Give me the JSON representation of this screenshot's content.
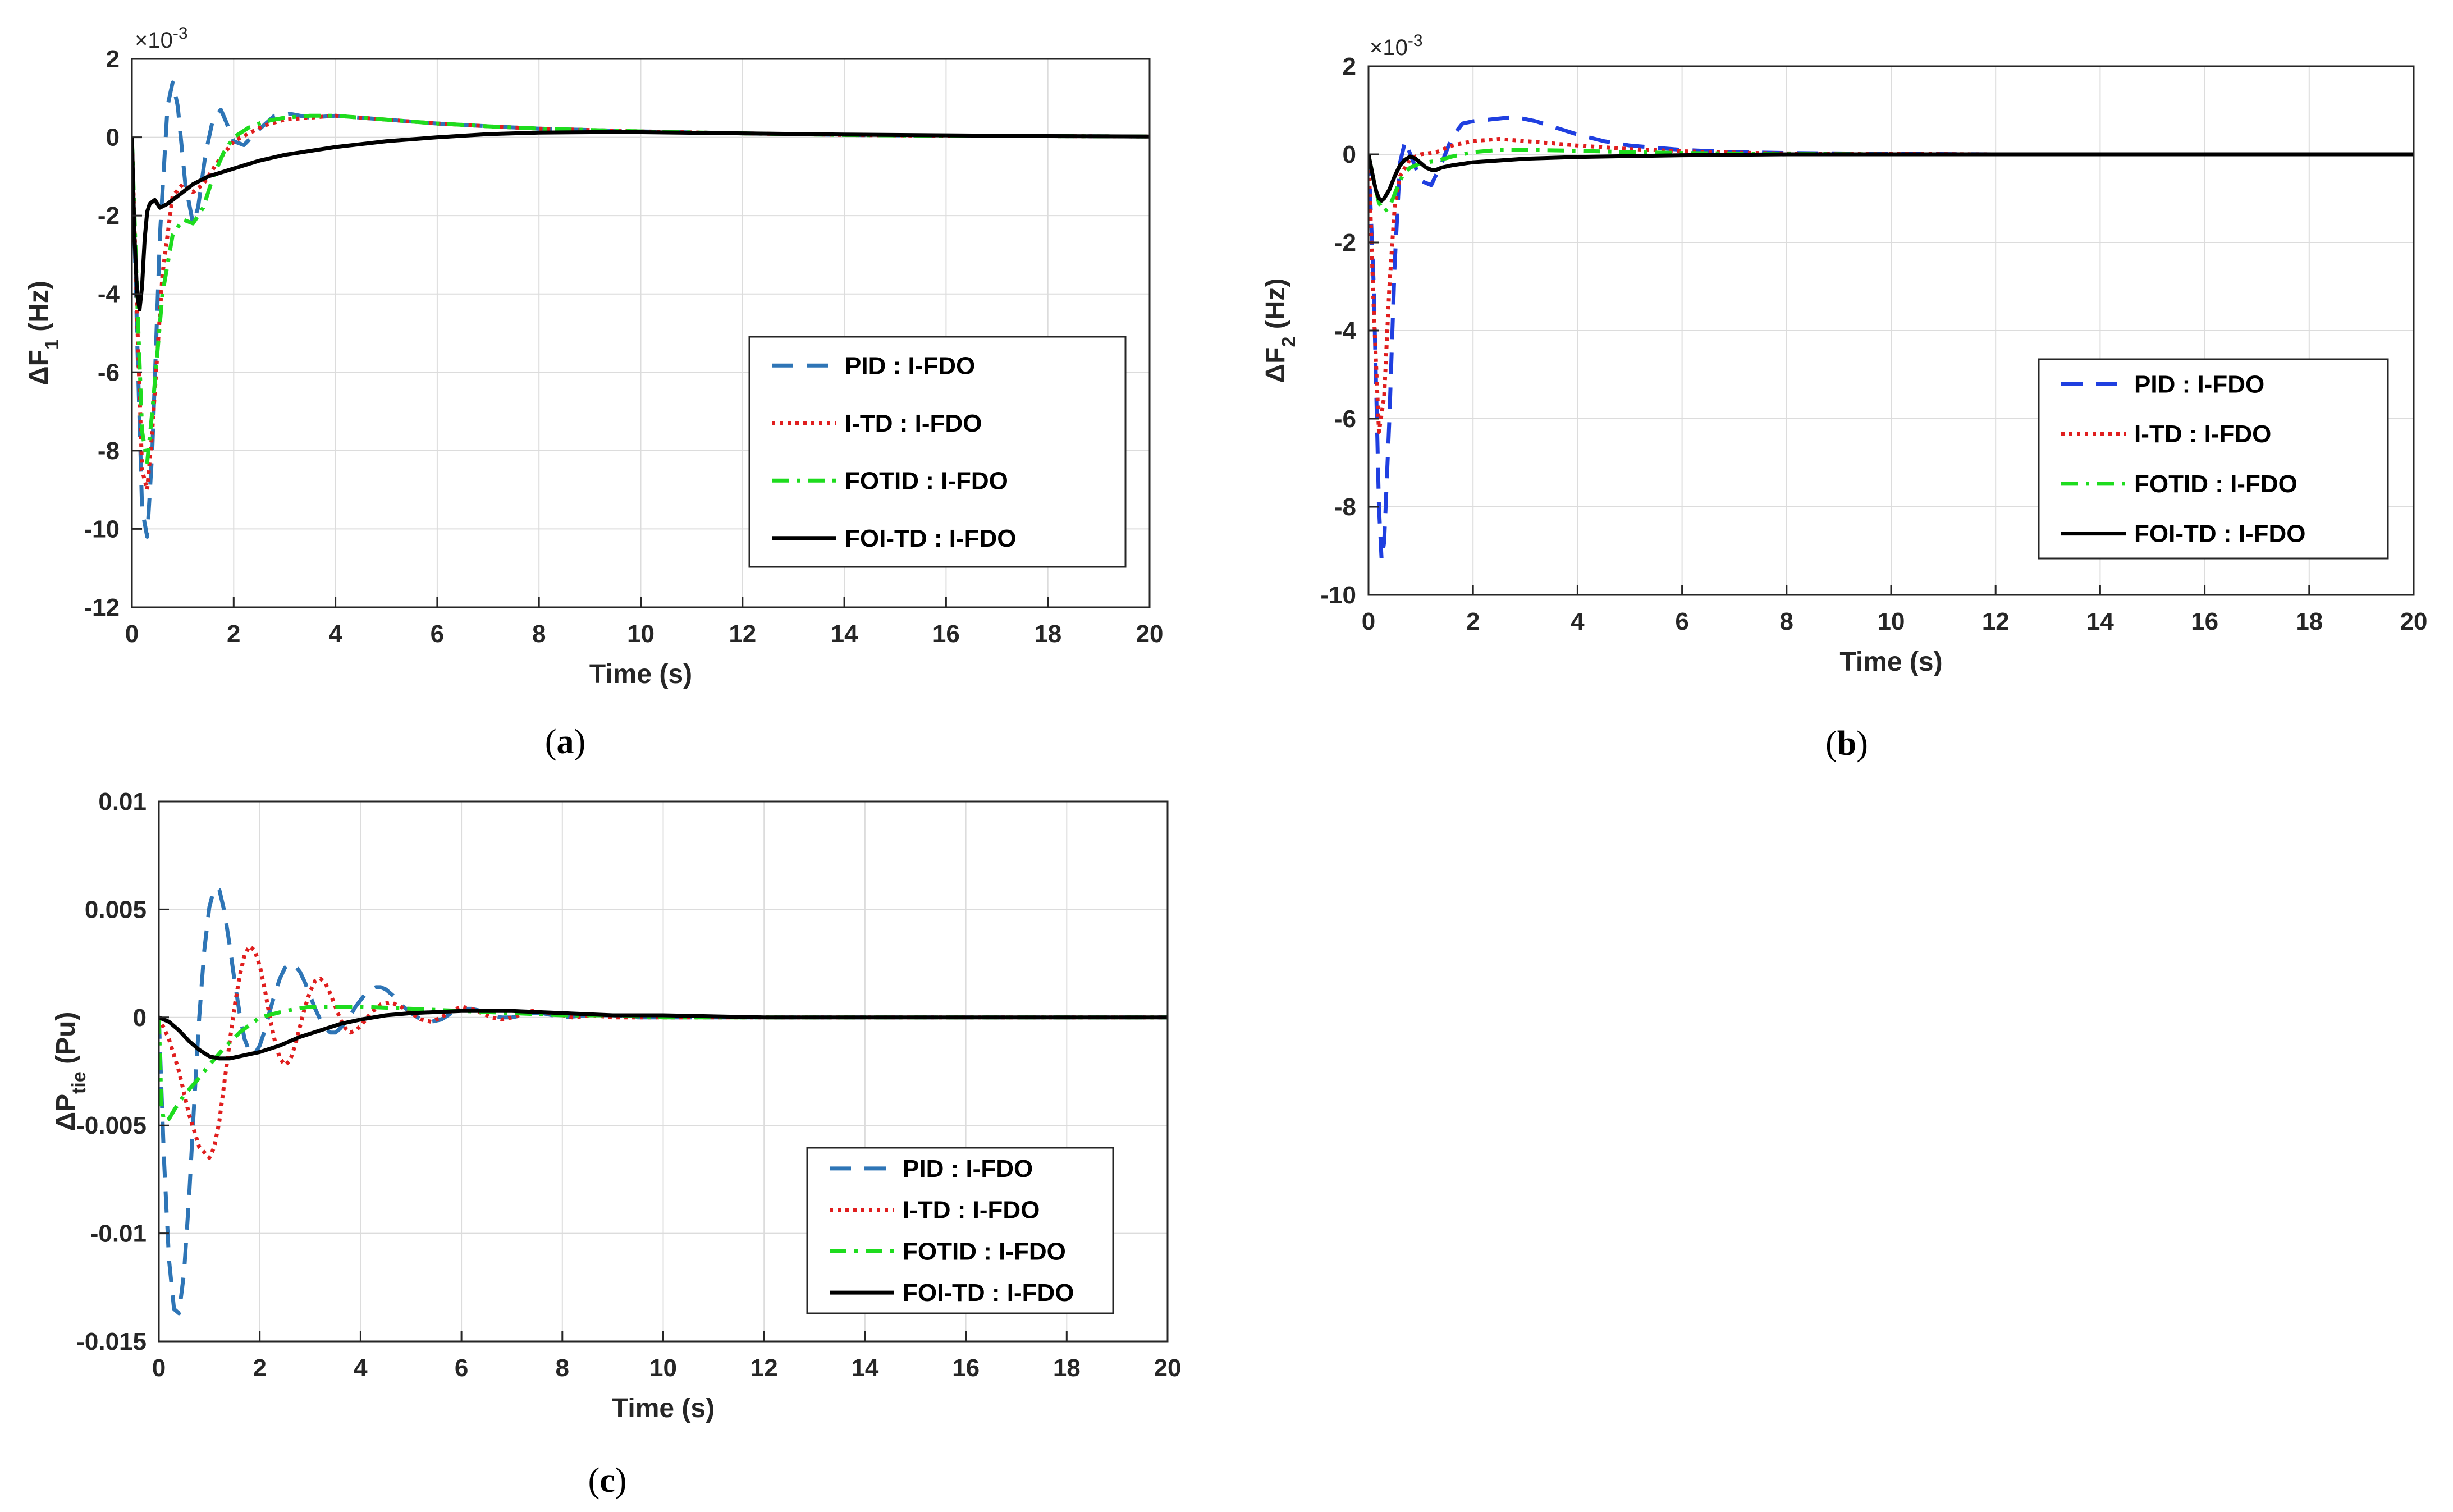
{
  "chart_data": [
    {
      "id": "a",
      "type": "line",
      "caption_letter": "a",
      "caption_open": "(",
      "caption_close": ")",
      "exponent_label": "×10",
      "exponent_power": "-3",
      "ylabel_main": "ΔF",
      "ylabel_sub": "1",
      "ylabel_unit": " (Hz)",
      "xlabel": "Time (s)",
      "xlim": [
        0,
        20
      ],
      "ylim": [
        -12,
        2
      ],
      "xticks": [
        "0",
        "2",
        "4",
        "6",
        "8",
        "10",
        "12",
        "14",
        "16",
        "18",
        "20"
      ],
      "yticks": [
        "2",
        "0",
        "-2",
        "-4",
        "-6",
        "-8",
        "-10",
        "-12"
      ],
      "grid": true,
      "legend_position": "lower-right",
      "series": [
        {
          "name": "PID : I-FDO",
          "color": "#2E75B6",
          "dash": "dashed",
          "x": [
            0,
            0.1,
            0.2,
            0.3,
            0.4,
            0.55,
            0.7,
            0.8,
            0.9,
            1.05,
            1.2,
            1.3,
            1.45,
            1.6,
            1.75,
            1.85,
            2.0,
            2.2,
            2.5,
            2.8,
            3.1,
            3.5,
            4,
            5,
            6,
            7,
            8,
            10,
            12,
            14,
            16,
            18,
            20
          ],
          "y": [
            0,
            -5.0,
            -9.5,
            -10.2,
            -8.0,
            -2.5,
            0.8,
            1.4,
            0.8,
            -1.2,
            -2.2,
            -1.8,
            -0.4,
            0.5,
            0.7,
            0.4,
            -0.1,
            -0.2,
            0.2,
            0.55,
            0.6,
            0.5,
            0.55,
            0.45,
            0.35,
            0.28,
            0.22,
            0.15,
            0.1,
            0.06,
            0.04,
            0.03,
            0.02
          ]
        },
        {
          "name": "I-TD : I-FDO",
          "color": "#E01E1E",
          "dash": "dotted",
          "x": [
            0,
            0.1,
            0.2,
            0.3,
            0.4,
            0.6,
            0.8,
            1.0,
            1.2,
            1.4,
            1.7,
            2.0,
            2.3,
            2.6,
            3.0,
            3.5,
            4,
            5,
            6,
            7,
            8,
            10,
            12,
            14,
            16,
            18,
            20
          ],
          "y": [
            0,
            -4.5,
            -8.5,
            -9.0,
            -7.5,
            -3.5,
            -1.5,
            -1.2,
            -1.4,
            -1.2,
            -0.6,
            -0.1,
            0.1,
            0.3,
            0.45,
            0.5,
            0.55,
            0.45,
            0.35,
            0.28,
            0.22,
            0.15,
            0.1,
            0.06,
            0.04,
            0.03,
            0.02
          ]
        },
        {
          "name": "FOTID : I-FDO",
          "color": "#1EDC1E",
          "dash": "dashdot",
          "x": [
            0,
            0.1,
            0.2,
            0.3,
            0.4,
            0.6,
            0.8,
            1.0,
            1.2,
            1.4,
            1.6,
            1.8,
            2.0,
            2.3,
            2.6,
            3.0,
            3.5,
            4,
            5,
            6,
            7,
            8,
            10,
            12,
            14,
            16,
            18,
            20
          ],
          "y": [
            0,
            -4.0,
            -7.5,
            -8.3,
            -7.0,
            -4.0,
            -2.5,
            -2.1,
            -2.2,
            -1.8,
            -1.0,
            -0.4,
            0.0,
            0.25,
            0.4,
            0.5,
            0.55,
            0.55,
            0.45,
            0.35,
            0.28,
            0.22,
            0.15,
            0.1,
            0.06,
            0.04,
            0.03,
            0.02
          ]
        },
        {
          "name": "FOI-TD : I-FDO",
          "color": "#000000",
          "dash": "solid",
          "x": [
            0,
            0.05,
            0.1,
            0.15,
            0.2,
            0.25,
            0.3,
            0.35,
            0.45,
            0.55,
            0.7,
            0.9,
            1.2,
            1.5,
            2,
            2.5,
            3,
            4,
            5,
            6,
            7,
            8,
            9,
            10,
            12,
            14,
            16,
            18,
            20
          ],
          "y": [
            0,
            -2.5,
            -4.0,
            -4.4,
            -3.8,
            -2.6,
            -1.9,
            -1.7,
            -1.6,
            -1.8,
            -1.7,
            -1.5,
            -1.2,
            -1.0,
            -0.8,
            -0.6,
            -0.45,
            -0.25,
            -0.1,
            0.0,
            0.08,
            0.12,
            0.13,
            0.13,
            0.1,
            0.07,
            0.05,
            0.03,
            0.02
          ]
        }
      ]
    },
    {
      "id": "b",
      "type": "line",
      "caption_letter": "b",
      "caption_open": "(",
      "caption_close": ")",
      "exponent_label": "×10",
      "exponent_power": "-3",
      "ylabel_main": "ΔF",
      "ylabel_sub": "2",
      "ylabel_unit": " (Hz)",
      "xlabel": "Time (s)",
      "xlim": [
        0,
        20
      ],
      "ylim": [
        -10,
        2
      ],
      "xticks": [
        "0",
        "2",
        "4",
        "6",
        "8",
        "10",
        "12",
        "14",
        "16",
        "18",
        "20"
      ],
      "yticks": [
        "2",
        "0",
        "-2",
        "-4",
        "-6",
        "-8",
        "-10"
      ],
      "grid": true,
      "legend_position": "lower-right",
      "series": [
        {
          "name": "PID : I-FDO",
          "color": "#1F3FE0",
          "dash": "dashed",
          "x": [
            0,
            0.1,
            0.2,
            0.25,
            0.3,
            0.4,
            0.5,
            0.6,
            0.7,
            0.8,
            1.0,
            1.2,
            1.4,
            1.6,
            1.8,
            2.0,
            2.4,
            2.8,
            3.2,
            3.6,
            4,
            4.5,
            5,
            6,
            7,
            8,
            10,
            12,
            14,
            16,
            18,
            20
          ],
          "y": [
            0,
            -3.0,
            -8.0,
            -9.2,
            -8.8,
            -6.0,
            -2.5,
            -0.2,
            0.3,
            0.0,
            -0.6,
            -0.7,
            -0.2,
            0.4,
            0.7,
            0.75,
            0.8,
            0.85,
            0.75,
            0.6,
            0.45,
            0.3,
            0.2,
            0.1,
            0.05,
            0.03,
            0.01,
            0,
            0,
            0,
            0,
            0
          ]
        },
        {
          "name": "I-TD : I-FDO",
          "color": "#E01E1E",
          "dash": "dotted",
          "x": [
            0,
            0.1,
            0.2,
            0.3,
            0.4,
            0.5,
            0.6,
            0.8,
            1.0,
            1.3,
            1.6,
            2.0,
            2.5,
            3,
            4,
            5,
            6,
            7,
            8,
            10,
            12,
            14,
            16,
            18,
            20
          ],
          "y": [
            0,
            -3.5,
            -6.3,
            -5.5,
            -3.0,
            -1.2,
            -0.5,
            -0.1,
            0.0,
            0.05,
            0.2,
            0.3,
            0.35,
            0.3,
            0.2,
            0.12,
            0.07,
            0.04,
            0.02,
            0.01,
            0,
            0,
            0,
            0,
            0
          ]
        },
        {
          "name": "FOTID : I-FDO",
          "color": "#1EDC1E",
          "dash": "dashdot",
          "x": [
            0,
            0.1,
            0.2,
            0.3,
            0.4,
            0.5,
            0.6,
            0.7,
            0.8,
            1.0,
            1.3,
            1.6,
            2.0,
            2.5,
            3,
            4,
            5,
            6,
            8,
            10,
            12,
            14,
            16,
            18,
            20
          ],
          "y": [
            0,
            -0.6,
            -1.1,
            -1.3,
            -1.2,
            -0.9,
            -0.6,
            -0.4,
            -0.3,
            -0.2,
            -0.15,
            -0.05,
            0.05,
            0.1,
            0.1,
            0.08,
            0.05,
            0.03,
            0.01,
            0,
            0,
            0,
            0,
            0,
            0
          ]
        },
        {
          "name": "FOI-TD : I-FDO",
          "color": "#000000",
          "dash": "solid",
          "x": [
            0,
            0.05,
            0.1,
            0.15,
            0.2,
            0.25,
            0.3,
            0.4,
            0.5,
            0.6,
            0.7,
            0.8,
            0.9,
            1.0,
            1.1,
            1.2,
            1.3,
            1.4,
            1.6,
            2.0,
            2.5,
            3,
            4,
            5,
            6,
            7,
            8,
            10,
            12,
            14,
            16,
            18,
            20
          ],
          "y": [
            0,
            -0.3,
            -0.6,
            -0.85,
            -1.0,
            -1.05,
            -1.0,
            -0.8,
            -0.5,
            -0.25,
            -0.12,
            -0.05,
            -0.1,
            -0.2,
            -0.3,
            -0.35,
            -0.35,
            -0.3,
            -0.25,
            -0.18,
            -0.14,
            -0.1,
            -0.06,
            -0.04,
            -0.02,
            -0.01,
            0,
            0,
            0,
            0,
            0,
            0,
            0
          ]
        }
      ]
    },
    {
      "id": "c",
      "type": "line",
      "caption_letter": "c",
      "caption_open": "(",
      "caption_close": ")",
      "exponent_label": "",
      "exponent_power": "",
      "ylabel_main": "ΔP",
      "ylabel_sub": "tie",
      "ylabel_unit": " (Pu)",
      "xlabel": "Time  (s)",
      "xlim": [
        0,
        20
      ],
      "ylim": [
        -0.015,
        0.01
      ],
      "xticks": [
        "0",
        "2",
        "4",
        "6",
        "8",
        "10",
        "12",
        "14",
        "16",
        "18",
        "20"
      ],
      "yticks": [
        "0.01",
        "0.005",
        "0",
        "-0.005",
        "-0.01",
        "-0.015"
      ],
      "grid": true,
      "legend_position": "lower-right",
      "series": [
        {
          "name": "PID : I-FDO",
          "color": "#2E75B6",
          "dash": "dashed",
          "x": [
            0,
            0.1,
            0.2,
            0.3,
            0.4,
            0.5,
            0.6,
            0.7,
            0.8,
            0.9,
            1.0,
            1.1,
            1.2,
            1.3,
            1.4,
            1.5,
            1.6,
            1.7,
            1.8,
            1.9,
            2.0,
            2.1,
            2.2,
            2.3,
            2.4,
            2.5,
            2.6,
            2.7,
            2.8,
            2.9,
            3.0,
            3.1,
            3.2,
            3.3,
            3.4,
            3.5,
            3.6,
            3.7,
            3.8,
            3.9,
            4.0,
            4.1,
            4.2,
            4.3,
            4.4,
            4.5,
            4.6,
            4.7,
            4.8,
            4.9,
            5.0,
            5.2,
            5.4,
            5.6,
            5.8,
            6.0,
            6.2,
            6.4,
            6.6,
            6.8,
            7.0,
            7.2,
            7.4,
            7.6,
            7.8,
            8.0,
            8.5,
            9,
            9.5,
            10,
            11,
            12,
            14,
            16,
            18,
            20
          ],
          "y": [
            0,
            -0.0065,
            -0.0112,
            -0.0135,
            -0.0137,
            -0.0118,
            -0.0083,
            -0.004,
            0.0,
            0.0031,
            0.0051,
            0.006,
            0.0059,
            0.0049,
            0.0034,
            0.0017,
            0.0002,
            -0.001,
            -0.0016,
            -0.0017,
            -0.0013,
            -0.0006,
            0.0003,
            0.0011,
            0.0018,
            0.0023,
            0.0025,
            0.0024,
            0.0021,
            0.0016,
            0.001,
            0.0004,
            -0.0001,
            -0.0005,
            -0.0007,
            -0.0007,
            -0.0005,
            -0.0002,
            0.0001,
            0.0005,
            0.0008,
            0.0011,
            0.0013,
            0.0014,
            0.0014,
            0.0013,
            0.0011,
            0.0009,
            0.0006,
            0.0004,
            0.0002,
            -0.0001,
            -0.0002,
            -0.0001,
            0.0002,
            0.0004,
            0.0004,
            0.0003,
            0.0001,
            0.0,
            0.0,
            0.0001,
            0.0002,
            0.0002,
            0.0001,
            0.0,
            0.0001,
            0.0001,
            0.0,
            0.0,
            0.0,
            0.0,
            0.0,
            0.0,
            0.0,
            0.0
          ]
        },
        {
          "name": "I-TD : I-FDO",
          "color": "#E01E1E",
          "dash": "dotted",
          "x": [
            0,
            0.2,
            0.4,
            0.6,
            0.8,
            1.0,
            1.1,
            1.2,
            1.3,
            1.4,
            1.5,
            1.6,
            1.7,
            1.8,
            1.9,
            2.0,
            2.1,
            2.2,
            2.3,
            2.4,
            2.5,
            2.6,
            2.7,
            2.8,
            2.9,
            3.0,
            3.1,
            3.2,
            3.3,
            3.4,
            3.5,
            3.6,
            3.7,
            3.8,
            3.9,
            4.0,
            4.2,
            4.4,
            4.6,
            4.8,
            5.0,
            5.2,
            5.4,
            5.6,
            5.8,
            6.0,
            6.2,
            6.4,
            6.6,
            6.8,
            7.0,
            7.4,
            7.8,
            8.2,
            8.6,
            9,
            10,
            12,
            14,
            16,
            18,
            20
          ],
          "y": [
            0,
            -0.001,
            -0.0025,
            -0.0045,
            -0.006,
            -0.0065,
            -0.006,
            -0.0048,
            -0.003,
            -0.0012,
            0.0005,
            0.0019,
            0.0029,
            0.0033,
            0.0031,
            0.0024,
            0.0013,
            0.0,
            -0.0011,
            -0.0019,
            -0.0022,
            -0.002,
            -0.0013,
            -0.0004,
            0.0005,
            0.0012,
            0.0017,
            0.0018,
            0.0016,
            0.0011,
            0.0005,
            -0.0001,
            -0.0005,
            -0.0007,
            -0.0006,
            -0.0004,
            0.0002,
            0.0006,
            0.0007,
            0.0005,
            0.0002,
            -0.0001,
            -0.0002,
            0.0,
            0.0003,
            0.0005,
            0.0004,
            0.0002,
            0.0,
            -0.0001,
            0.0,
            0.0003,
            0.0002,
            0.0,
            0.0001,
            0.0,
            0.0,
            0.0,
            0.0,
            0.0,
            0.0,
            0.0
          ]
        },
        {
          "name": "FOTID : I-FDO",
          "color": "#1EDC1E",
          "dash": "dashdot",
          "x": [
            0,
            0.05,
            0.1,
            0.2,
            0.3,
            0.5,
            0.8,
            1.0,
            1.3,
            1.6,
            2.0,
            2.5,
            3,
            3.5,
            4,
            5,
            6,
            7,
            8,
            9,
            10,
            12,
            14,
            16,
            18,
            20
          ],
          "y": [
            0,
            -0.004,
            -0.0048,
            -0.0047,
            -0.0043,
            -0.0036,
            -0.0028,
            -0.0022,
            -0.0014,
            -0.0007,
            0.0,
            0.0003,
            0.0005,
            0.0005,
            0.0005,
            0.0004,
            0.0003,
            0.0002,
            0.0001,
            0.0001,
            0.0,
            0.0,
            0.0,
            0.0,
            0.0,
            0.0
          ]
        },
        {
          "name": "FOI-TD : I-FDO",
          "color": "#000000",
          "dash": "solid",
          "x": [
            0,
            0.2,
            0.4,
            0.6,
            0.8,
            1.0,
            1.2,
            1.4,
            1.6,
            1.8,
            2.0,
            2.4,
            2.8,
            3.2,
            3.6,
            4.0,
            4.5,
            5,
            6,
            7,
            8,
            9,
            10,
            12,
            14,
            16,
            18,
            20
          ],
          "y": [
            0,
            -0.0002,
            -0.0006,
            -0.0011,
            -0.0015,
            -0.0018,
            -0.0019,
            -0.0019,
            -0.0018,
            -0.0017,
            -0.0016,
            -0.0013,
            -0.0009,
            -0.0006,
            -0.0003,
            -0.0001,
            0.0001,
            0.0002,
            0.0003,
            0.0003,
            0.0002,
            0.0001,
            0.0001,
            0.0,
            0.0,
            0.0,
            0.0,
            0.0
          ]
        }
      ]
    }
  ]
}
